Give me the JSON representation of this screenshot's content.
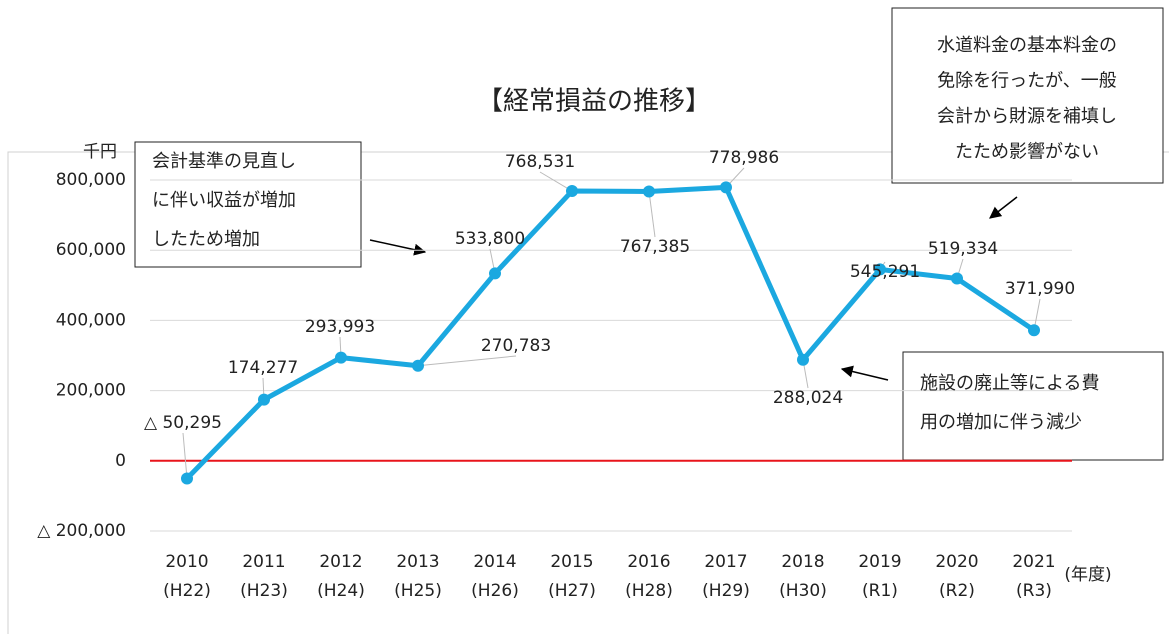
{
  "chart_data": {
    "type": "line",
    "title": "【経常損益の推移】",
    "y_unit": "千円",
    "x_unit": "(年度)",
    "categories": [
      [
        "2010",
        "(H22)"
      ],
      [
        "2011",
        "(H23)"
      ],
      [
        "2012",
        "(H24)"
      ],
      [
        "2013",
        "(H25)"
      ],
      [
        "2014",
        "(H26)"
      ],
      [
        "2015",
        "(H27)"
      ],
      [
        "2016",
        "(H28)"
      ],
      [
        "2017",
        "(H29)"
      ],
      [
        "2018",
        "(H30)"
      ],
      [
        "2019",
        "(R1)"
      ],
      [
        "2020",
        "(R2)"
      ],
      [
        "2021",
        "(R3)"
      ]
    ],
    "series": [
      {
        "color": "#1ba8e0",
        "values": [
          -50295,
          174277,
          293993,
          270783,
          533800,
          768531,
          767385,
          778986,
          288024,
          545291,
          519334,
          371990
        ],
        "value_labels": [
          "△ 50,295",
          "174,277",
          "293,993",
          "270,783",
          "533,800",
          "768,531",
          "767,385",
          "778,986",
          "288,024",
          "545,291",
          "519,334",
          "371,990"
        ]
      }
    ],
    "ylim": [
      -200000,
      800000
    ],
    "yticks": [
      {
        "value": -200000,
        "label": "△ 200,000"
      },
      0,
      {
        "value": 200000,
        "label": "200,000"
      },
      {
        "value": 400000,
        "label": "400,000"
      },
      {
        "value": 600000,
        "label": "600,000"
      },
      {
        "value": 800000,
        "label": "800,000"
      }
    ],
    "grid": true,
    "zero_line_color": "#e8141b",
    "annotations": [
      {
        "lines": [
          "会計基準の見直し",
          "に伴い収益が増加",
          "したため増加"
        ]
      },
      {
        "lines": [
          "水道料金の基本料金の",
          "免除を行ったが、一般",
          "会計から財源を補填し",
          "たため影響がない"
        ]
      },
      {
        "lines": [
          "施設の廃止等による費",
          "用の増加に伴う減少"
        ]
      }
    ]
  }
}
